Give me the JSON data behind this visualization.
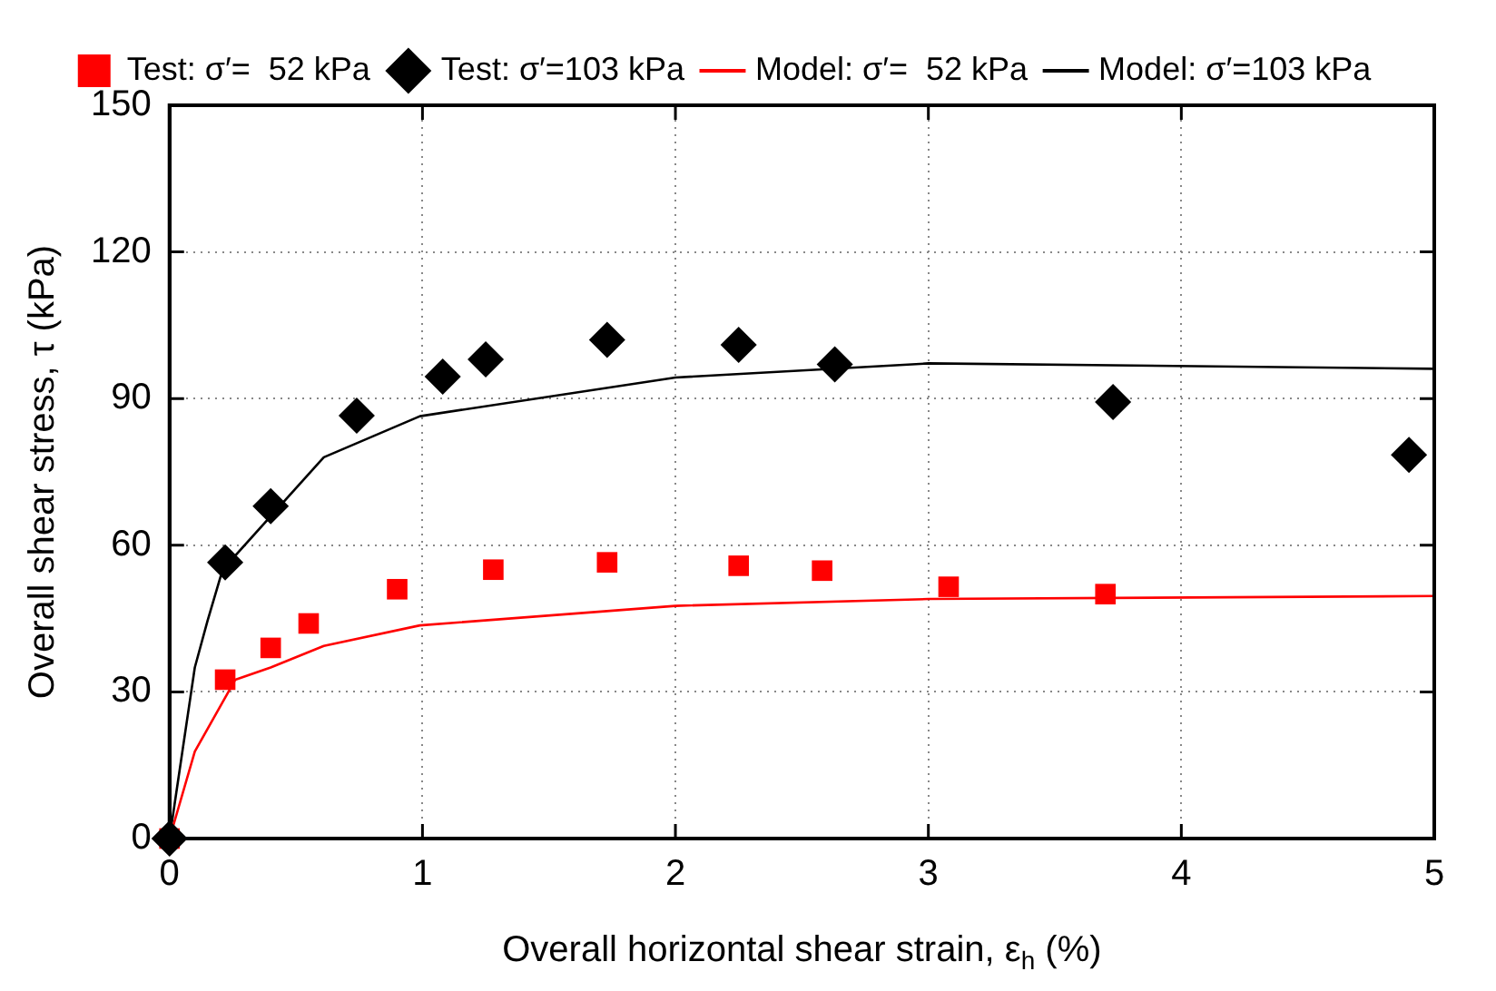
{
  "chart_data": {
    "type": "scatter",
    "xlabel": "Overall horizontal shear strain, ε$_{h}$ (%)",
    "ylabel": "Overall shear stress, τ (kPa)",
    "xlim": [
      0,
      5
    ],
    "xticks": [
      0,
      1,
      2,
      3,
      4,
      5
    ],
    "ylim": [
      0,
      150
    ],
    "yticks": [
      0,
      30,
      60,
      90,
      120,
      150
    ],
    "grid": true,
    "legend": "top",
    "series": [
      {
        "name": "Test: σ′=  52 kPa",
        "type": "scatter",
        "marker": "square",
        "color": "#ff0000",
        "x": [
          0,
          0.22,
          0.4,
          0.55,
          0.9,
          1.28,
          1.73,
          2.25,
          2.58,
          3.08,
          3.7
        ],
        "values": [
          0,
          32.5,
          39,
          44,
          51,
          55,
          56.5,
          55.8,
          54.8,
          51.5,
          50
        ]
      },
      {
        "name": "Test: σ′=103 kPa",
        "type": "scatter",
        "marker": "diamond",
        "color": "#000000",
        "x": [
          0,
          0.22,
          0.4,
          0.74,
          1.08,
          1.25,
          1.73,
          2.25,
          2.63,
          3.73,
          4.9
        ],
        "values": [
          0,
          56.5,
          68,
          86.5,
          94.5,
          98,
          102,
          101,
          97,
          89.3,
          78.5
        ]
      },
      {
        "name": "Model: σ′=  52 kPa",
        "type": "line",
        "marker": "none",
        "color": "#ff0000",
        "x": [
          0,
          0.1,
          0.26,
          0.4,
          0.61,
          0.99,
          2,
          3,
          5
        ],
        "values": [
          0,
          17.8,
          32.5,
          35,
          39.4,
          43.6,
          47.6,
          49,
          49.6
        ]
      },
      {
        "name": "Model: σ′=103 kPa",
        "type": "line",
        "marker": "none",
        "color": "#000000",
        "x": [
          0,
          0.1,
          0.15,
          0.21,
          0.61,
          0.99,
          2,
          3,
          5
        ],
        "values": [
          0,
          35,
          44.5,
          55,
          78,
          86.4,
          94.3,
          97.2,
          96.1
        ]
      }
    ]
  }
}
